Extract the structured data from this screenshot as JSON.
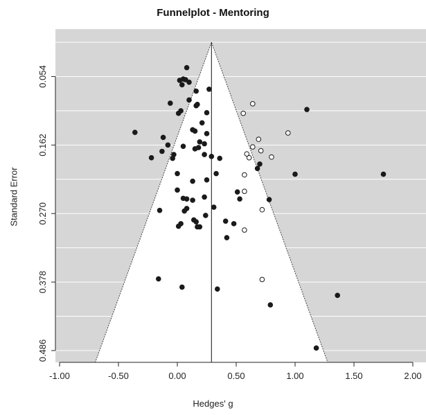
{
  "chart_data": {
    "type": "scatter",
    "title": "Funnelplot - Mentoring",
    "xlabel": "Hedges' g",
    "ylabel": "Standard Error",
    "xlim": [
      -1.0,
      2.0
    ],
    "ylim": [
      0.0,
      0.486
    ],
    "y_reversed": true,
    "x_ticks": [
      -1.0,
      -0.5,
      0.0,
      0.5,
      1.0,
      1.5,
      2.0
    ],
    "x_tick_labels": [
      "-1.00",
      "-0.50",
      "0.00",
      "0.50",
      "1.00",
      "1.50",
      "2.00"
    ],
    "y_ticks": [
      0.054,
      0.162,
      0.27,
      0.378,
      0.486
    ],
    "y_tick_labels": [
      "0.054",
      "0.162",
      "0.270",
      "0.378",
      "0.486"
    ],
    "grid": true,
    "background": "#d6d6d6",
    "funnel_fill": "#ffffff",
    "funnel_apex": [
      0.29,
      0.0
    ],
    "funnel_base": [
      -0.7,
      1.28
    ],
    "funnel_base_se": 0.506,
    "center_line_x": 0.29,
    "series": [
      {
        "filled": true,
        "color": "#1a1a1a",
        "points": [
          [
            0.08,
            0.04
          ],
          [
            0.05,
            0.058
          ],
          [
            0.07,
            0.059
          ],
          [
            0.02,
            0.06
          ],
          [
            0.1,
            0.063
          ],
          [
            0.04,
            0.067
          ],
          [
            0.16,
            0.077
          ],
          [
            0.27,
            0.074
          ],
          [
            -0.06,
            0.096
          ],
          [
            0.1,
            0.091
          ],
          [
            0.17,
            0.098
          ],
          [
            0.16,
            0.1
          ],
          [
            0.03,
            0.108
          ],
          [
            0.01,
            0.112
          ],
          [
            0.25,
            0.111
          ],
          [
            0.21,
            0.127
          ],
          [
            0.13,
            0.138
          ],
          [
            0.15,
            0.14
          ],
          [
            -0.36,
            0.142
          ],
          [
            0.25,
            0.144
          ],
          [
            -0.12,
            0.15
          ],
          [
            0.19,
            0.157
          ],
          [
            0.23,
            0.16
          ],
          [
            -0.08,
            0.162
          ],
          [
            0.05,
            0.164
          ],
          [
            0.15,
            0.168
          ],
          [
            0.18,
            0.166
          ],
          [
            -0.13,
            0.172
          ],
          [
            -0.03,
            0.177
          ],
          [
            0.23,
            0.177
          ],
          [
            -0.22,
            0.182
          ],
          [
            -0.04,
            0.183
          ],
          [
            0.29,
            0.18
          ],
          [
            0.36,
            0.183
          ],
          [
            0.7,
            0.192
          ],
          [
            0.68,
            0.199
          ],
          [
            0.0,
            0.207
          ],
          [
            0.33,
            0.207
          ],
          [
            0.13,
            0.219
          ],
          [
            0.25,
            0.217
          ],
          [
            0.0,
            0.233
          ],
          [
            0.51,
            0.236
          ],
          [
            0.05,
            0.246
          ],
          [
            0.23,
            0.244
          ],
          [
            0.08,
            0.247
          ],
          [
            0.13,
            0.249
          ],
          [
            0.53,
            0.247
          ],
          [
            0.78,
            0.248
          ],
          [
            0.08,
            0.262
          ],
          [
            0.31,
            0.26
          ],
          [
            -0.15,
            0.265
          ],
          [
            0.06,
            0.266
          ],
          [
            0.24,
            0.273
          ],
          [
            0.14,
            0.28
          ],
          [
            0.16,
            0.283
          ],
          [
            0.41,
            0.282
          ],
          [
            0.03,
            0.286
          ],
          [
            0.01,
            0.29
          ],
          [
            0.17,
            0.291
          ],
          [
            0.19,
            0.291
          ],
          [
            0.42,
            0.308
          ],
          [
            0.48,
            0.286
          ],
          [
            -0.16,
            0.373
          ],
          [
            0.04,
            0.386
          ],
          [
            0.34,
            0.389
          ],
          [
            0.79,
            0.414
          ],
          [
            1.1,
            0.106
          ],
          [
            1.0,
            0.208
          ],
          [
            1.75,
            0.208
          ],
          [
            1.36,
            0.399
          ],
          [
            1.18,
            0.482
          ]
        ]
      },
      {
        "filled": false,
        "color": "#1a1a1a",
        "points": [
          [
            0.64,
            0.097
          ],
          [
            0.56,
            0.112
          ],
          [
            0.94,
            0.143
          ],
          [
            0.69,
            0.153
          ],
          [
            0.64,
            0.165
          ],
          [
            0.71,
            0.171
          ],
          [
            0.59,
            0.176
          ],
          [
            0.61,
            0.182
          ],
          [
            0.8,
            0.181
          ],
          [
            0.57,
            0.209
          ],
          [
            0.57,
            0.235
          ],
          [
            0.72,
            0.264
          ],
          [
            0.57,
            0.296
          ],
          [
            0.72,
            0.374
          ]
        ]
      }
    ]
  }
}
